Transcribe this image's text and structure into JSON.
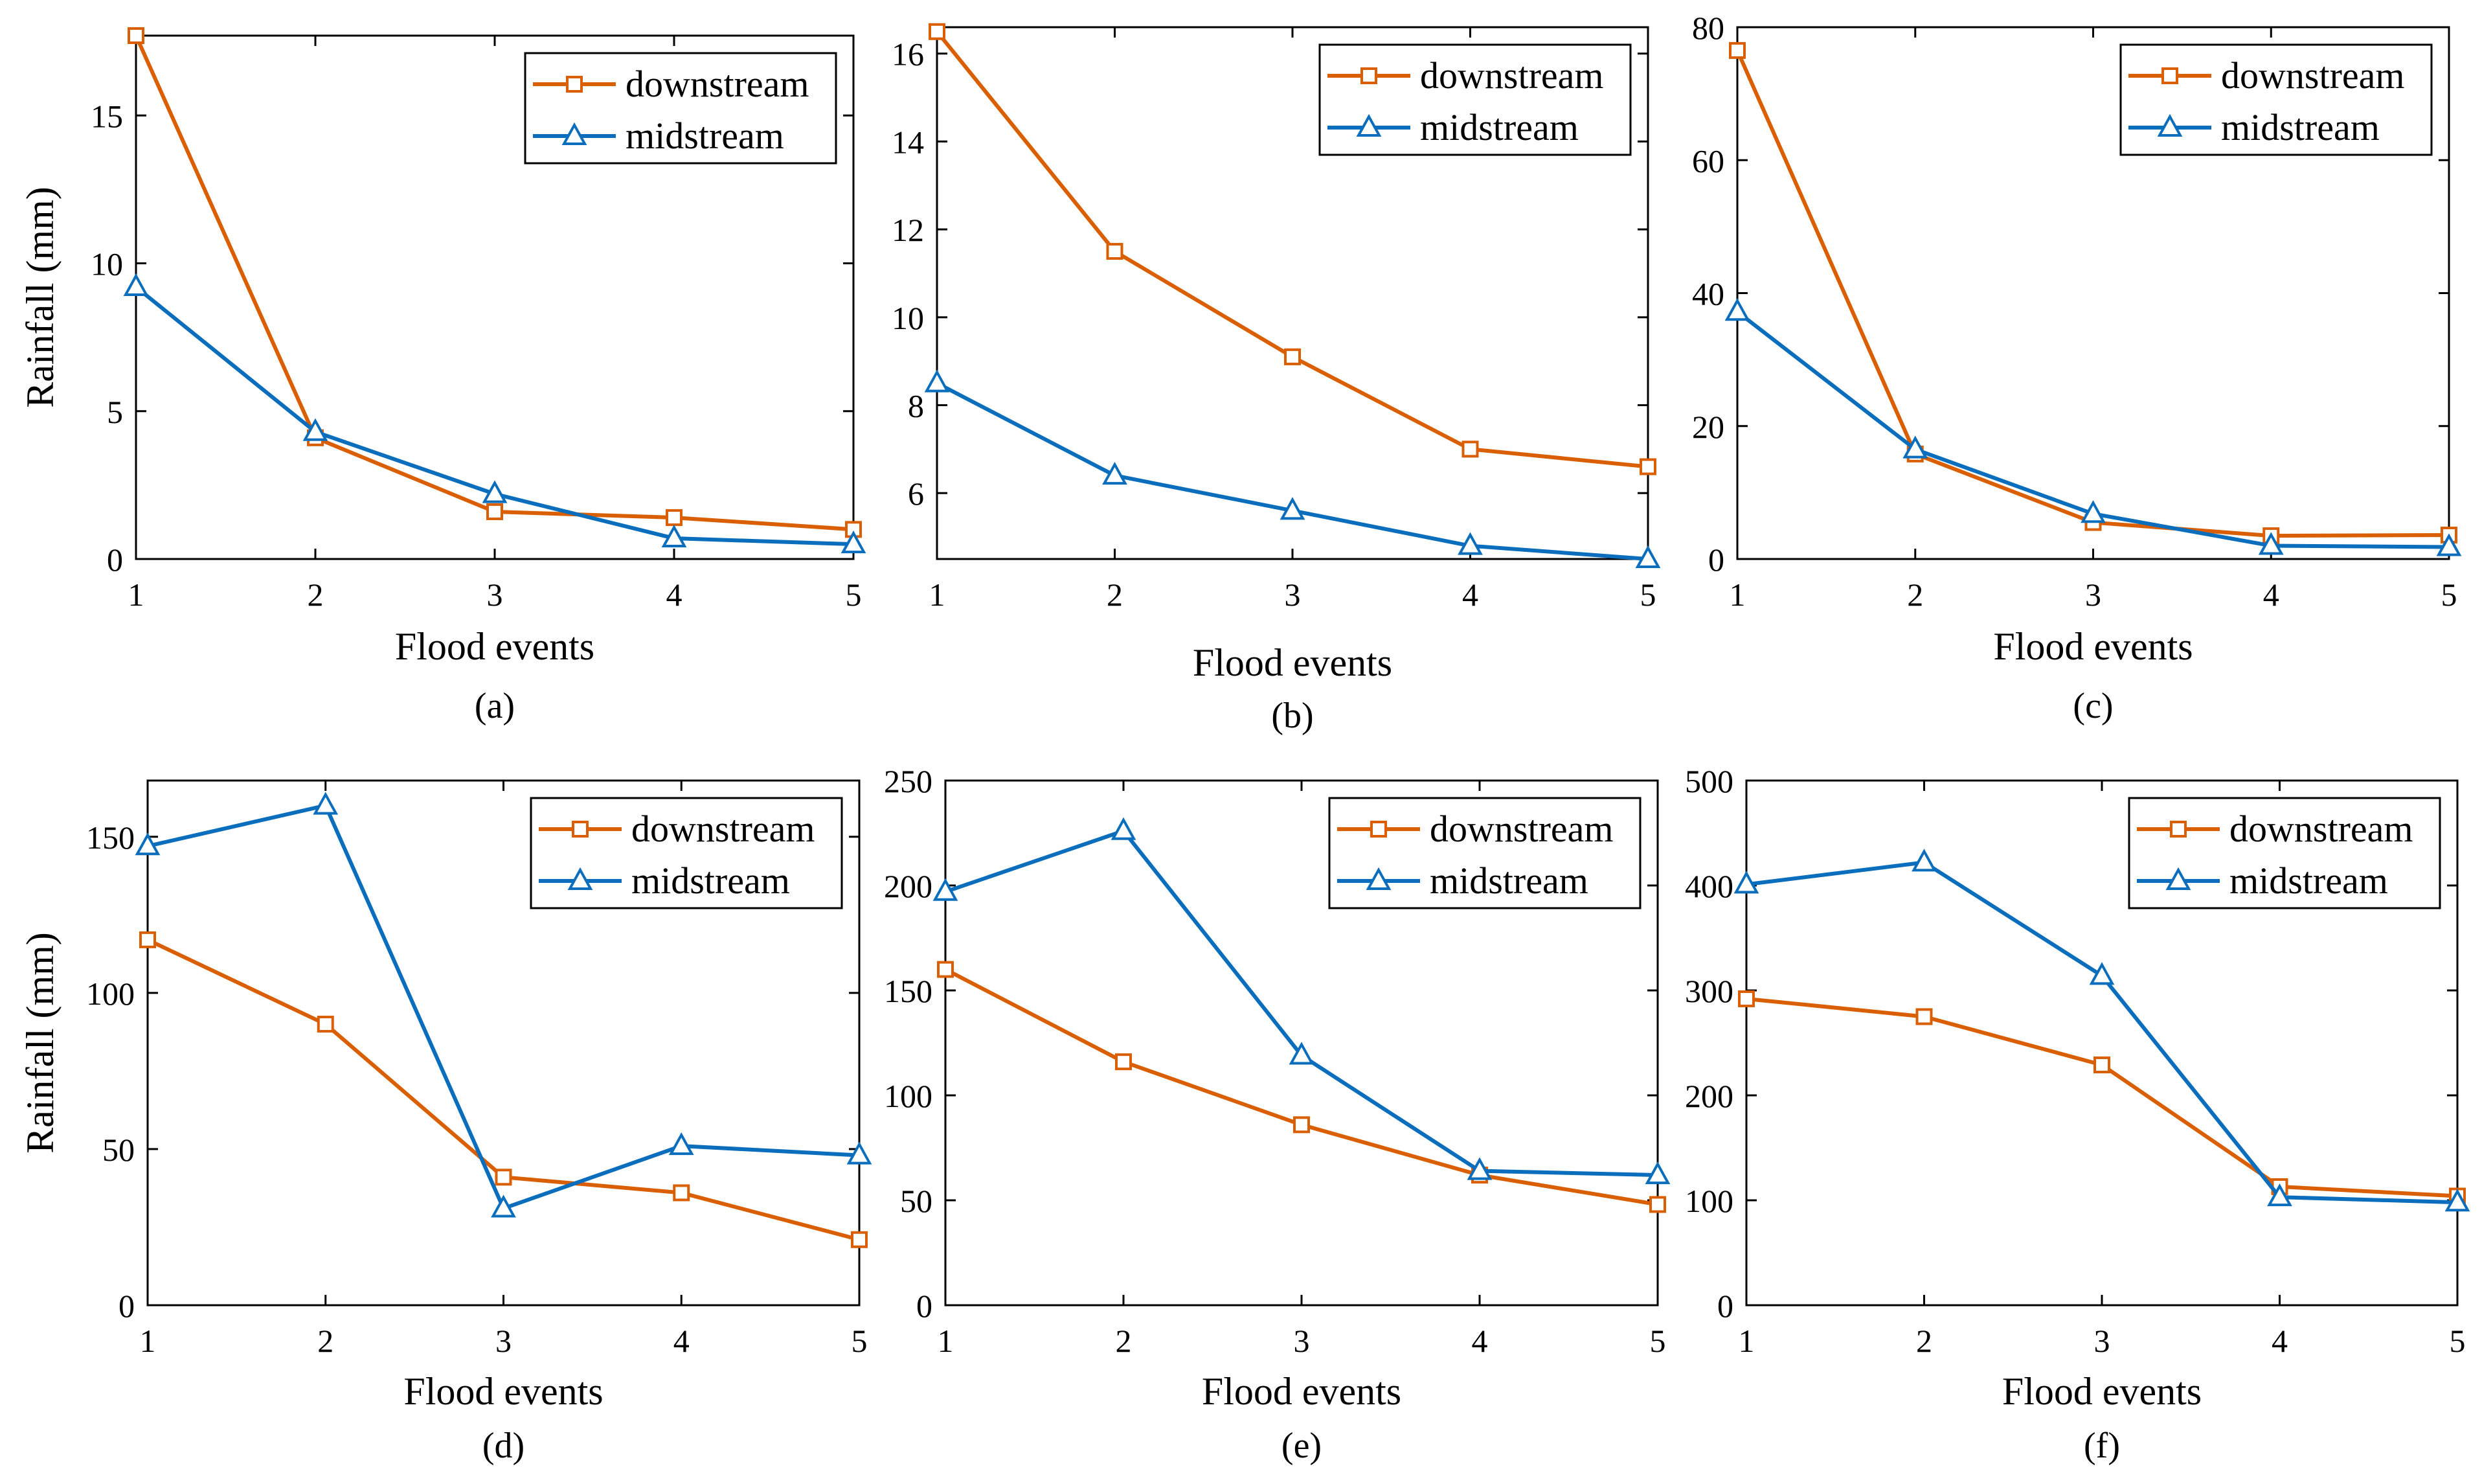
{
  "figure": {
    "colors": {
      "downstream": "#D95F02",
      "midstream": "#0B6EBD",
      "axis": "#000000"
    }
  },
  "chart_data": [
    {
      "id": "a",
      "type": "line",
      "caption": "(a)",
      "xlabel": "Flood events",
      "ylabel": "Rainfall (mm)",
      "x": [
        1,
        2,
        3,
        4,
        5
      ],
      "xticks": [
        "1",
        "2",
        "3",
        "4",
        "5"
      ],
      "xlim": [
        1,
        5
      ],
      "ylim": [
        0,
        17.7
      ],
      "yticks": [
        0,
        5,
        10,
        15
      ],
      "ytick_labels": [
        "0",
        "5",
        "10",
        "15"
      ],
      "legend": {
        "position": "top-right"
      },
      "series": [
        {
          "name": "downstream",
          "marker": "square",
          "values": [
            17.7,
            4.1,
            1.6,
            1.4,
            1.0
          ]
        },
        {
          "name": "midstream",
          "marker": "triangle",
          "values": [
            9.2,
            4.3,
            2.2,
            0.7,
            0.5
          ]
        }
      ]
    },
    {
      "id": "b",
      "type": "line",
      "caption": "(b)",
      "xlabel": "Flood events",
      "ylabel": "",
      "x": [
        1,
        2,
        3,
        4,
        5
      ],
      "xticks": [
        "1",
        "2",
        "3",
        "4",
        "5"
      ],
      "xlim": [
        1,
        5
      ],
      "ylim": [
        4.5,
        16.6
      ],
      "yticks": [
        6,
        8,
        10,
        12,
        14,
        16
      ],
      "ytick_labels": [
        "6",
        "8",
        "10",
        "12",
        "14",
        "16"
      ],
      "legend": {
        "position": "top-right"
      },
      "series": [
        {
          "name": "downstream",
          "marker": "square",
          "values": [
            16.5,
            11.5,
            9.1,
            7.0,
            6.6
          ]
        },
        {
          "name": "midstream",
          "marker": "triangle",
          "values": [
            8.5,
            6.4,
            5.6,
            4.8,
            4.5
          ]
        }
      ]
    },
    {
      "id": "c",
      "type": "line",
      "caption": "(c)",
      "xlabel": "Flood events",
      "ylabel": "",
      "x": [
        1,
        2,
        3,
        4,
        5
      ],
      "xticks": [
        "1",
        "2",
        "3",
        "4",
        "5"
      ],
      "xlim": [
        1,
        5
      ],
      "ylim": [
        0,
        80
      ],
      "yticks": [
        0,
        20,
        40,
        60,
        80
      ],
      "ytick_labels": [
        "0",
        "20",
        "40",
        "60",
        "80"
      ],
      "legend": {
        "position": "top-right"
      },
      "series": [
        {
          "name": "downstream",
          "marker": "square",
          "values": [
            76.5,
            15.8,
            5.5,
            3.5,
            3.6
          ]
        },
        {
          "name": "midstream",
          "marker": "triangle",
          "values": [
            37.2,
            16.5,
            6.8,
            2.0,
            1.8
          ]
        }
      ]
    },
    {
      "id": "d",
      "type": "line",
      "caption": "(d)",
      "xlabel": "Flood events",
      "ylabel": "Rainfall (mm)",
      "x": [
        1,
        2,
        3,
        4,
        5
      ],
      "xticks": [
        "1",
        "2",
        "3",
        "4",
        "5"
      ],
      "xlim": [
        1,
        5
      ],
      "ylim": [
        0,
        168
      ],
      "yticks": [
        0,
        50,
        100,
        150
      ],
      "ytick_labels": [
        "0",
        "50",
        "100",
        "150"
      ],
      "legend": {
        "position": "top-right"
      },
      "series": [
        {
          "name": "downstream",
          "marker": "square",
          "values": [
            117,
            90,
            41,
            36,
            21
          ]
        },
        {
          "name": "midstream",
          "marker": "triangle",
          "values": [
            147,
            160,
            31,
            51,
            48
          ]
        }
      ]
    },
    {
      "id": "e",
      "type": "line",
      "caption": "(e)",
      "xlabel": "Flood events",
      "ylabel": "",
      "x": [
        1,
        2,
        3,
        4,
        5
      ],
      "xticks": [
        "1",
        "2",
        "3",
        "4",
        "5"
      ],
      "xlim": [
        1,
        5
      ],
      "ylim": [
        0,
        250
      ],
      "yticks": [
        0,
        50,
        100,
        150,
        200,
        250
      ],
      "ytick_labels": [
        "0",
        "50",
        "100",
        "150",
        "200",
        "250"
      ],
      "legend": {
        "position": "top-right"
      },
      "series": [
        {
          "name": "downstream",
          "marker": "square",
          "values": [
            160,
            116,
            86,
            62,
            48
          ]
        },
        {
          "name": "midstream",
          "marker": "triangle",
          "values": [
            197,
            226,
            119,
            64,
            62
          ]
        }
      ]
    },
    {
      "id": "f",
      "type": "line",
      "caption": "(f)",
      "xlabel": "Flood events",
      "ylabel": "",
      "x": [
        1,
        2,
        3,
        4,
        5
      ],
      "xticks": [
        "1",
        "2",
        "3",
        "4",
        "5"
      ],
      "xlim": [
        1,
        5
      ],
      "ylim": [
        0,
        500
      ],
      "yticks": [
        0,
        100,
        200,
        300,
        400,
        500
      ],
      "ytick_labels": [
        "0",
        "100",
        "200",
        "300",
        "400",
        "500"
      ],
      "legend": {
        "position": "top-right"
      },
      "series": [
        {
          "name": "downstream",
          "marker": "square",
          "values": [
            292,
            275,
            229,
            113,
            104
          ]
        },
        {
          "name": "midstream",
          "marker": "triangle",
          "values": [
            401,
            422,
            314,
            103,
            98
          ]
        }
      ]
    }
  ]
}
